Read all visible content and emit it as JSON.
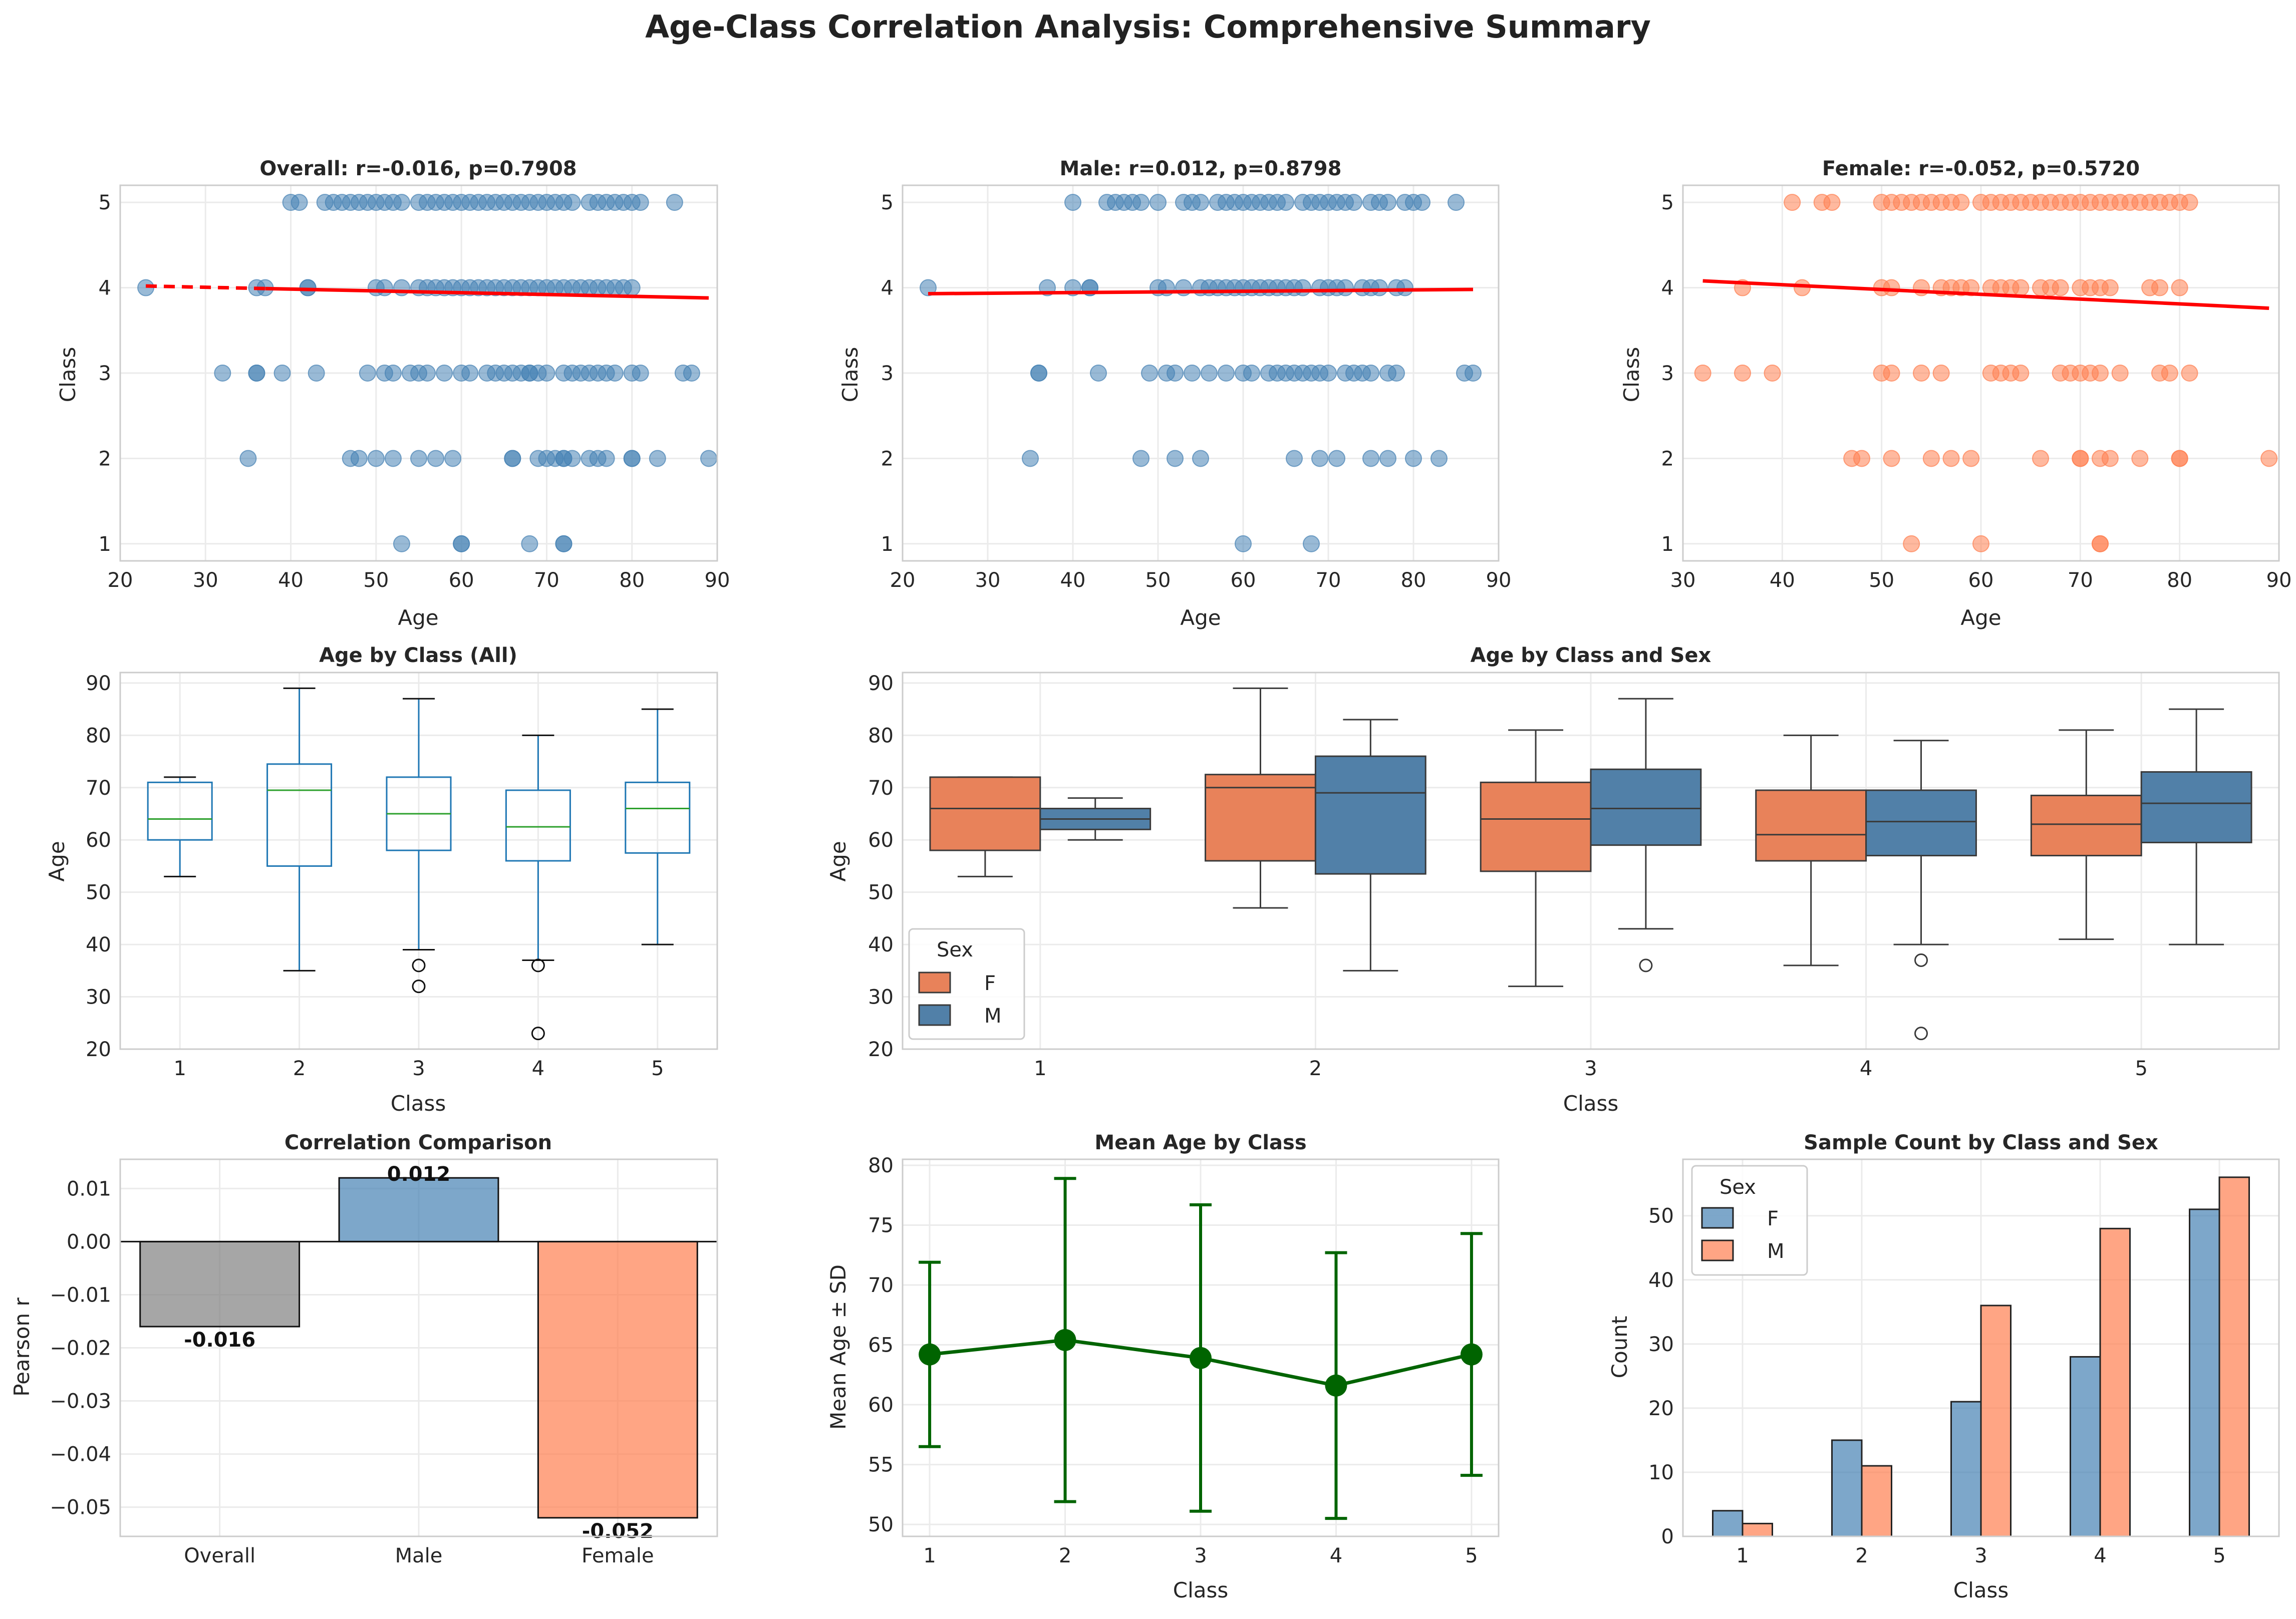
{
  "figure": {
    "title": "Age-Class Correlation Analysis: Comprehensive Summary"
  },
  "colors": {
    "steelblue": "#4682b4",
    "coral": "#ff7f50",
    "coral_box": "#e8825a",
    "blue_box": "#5180a8",
    "red": "#ff0000",
    "green": "#006400",
    "gray": "#808080",
    "mpl_blue": "#1f77b4",
    "mpl_green": "#2ca02c"
  },
  "chart_data": [
    {
      "id": "overall",
      "type": "scatter",
      "title": "Overall: r=-0.016, p=0.7908",
      "xlabel": "Age",
      "ylabel": "Class",
      "xlim": [
        20,
        90
      ],
      "ylim": [
        0.8,
        5.2
      ],
      "xticks": [
        20,
        30,
        40,
        50,
        60,
        70,
        80,
        90
      ],
      "yticks": [
        1,
        2,
        3,
        4,
        5
      ],
      "color": "#4682b4",
      "points": {
        "1": [
          53,
          60,
          60,
          68,
          72,
          72
        ],
        "2": [
          35,
          47,
          48,
          50,
          52,
          55,
          57,
          59,
          66,
          66,
          69,
          70,
          71,
          72,
          72,
          73,
          75,
          76,
          77,
          80,
          80,
          83,
          89
        ],
        "3": [
          32,
          36,
          36,
          39,
          43,
          49,
          51,
          52,
          54,
          55,
          56,
          58,
          60,
          61,
          63,
          64,
          65,
          66,
          67,
          68,
          68,
          69,
          70,
          72,
          73,
          74,
          75,
          76,
          77,
          78,
          80,
          81,
          86,
          87
        ],
        "4": [
          23,
          36,
          37,
          42,
          42,
          50,
          51,
          53,
          55,
          56,
          57,
          58,
          59,
          60,
          61,
          62,
          63,
          64,
          65,
          66,
          67,
          68,
          69,
          70,
          71,
          72,
          73,
          74,
          75,
          76,
          77,
          78,
          79,
          80
        ],
        "5": [
          40,
          41,
          44,
          45,
          46,
          47,
          48,
          49,
          50,
          51,
          52,
          53,
          55,
          56,
          57,
          58,
          59,
          60,
          61,
          62,
          63,
          64,
          65,
          66,
          67,
          68,
          69,
          70,
          71,
          72,
          73,
          75,
          76,
          77,
          78,
          79,
          80,
          81,
          85
        ]
      },
      "fit": {
        "x": [
          23,
          89
        ],
        "y": [
          4.02,
          3.88
        ],
        "dashed_until": 37
      }
    },
    {
      "id": "male",
      "type": "scatter",
      "title": "Male: r=0.012, p=0.8798",
      "xlabel": "Age",
      "ylabel": "Class",
      "xlim": [
        20,
        90
      ],
      "ylim": [
        0.8,
        5.2
      ],
      "xticks": [
        20,
        30,
        40,
        50,
        60,
        70,
        80,
        90
      ],
      "yticks": [
        1,
        2,
        3,
        4,
        5
      ],
      "color": "#4682b4",
      "points": {
        "1": [
          60,
          68
        ],
        "2": [
          35,
          48,
          52,
          55,
          66,
          69,
          71,
          75,
          77,
          80,
          83
        ],
        "3": [
          36,
          36,
          43,
          49,
          51,
          52,
          54,
          56,
          58,
          60,
          61,
          63,
          64,
          65,
          66,
          67,
          68,
          69,
          70,
          72,
          73,
          74,
          75,
          77,
          78,
          86,
          87
        ],
        "4": [
          23,
          37,
          40,
          42,
          42,
          50,
          51,
          53,
          55,
          56,
          57,
          58,
          59,
          60,
          61,
          62,
          63,
          64,
          65,
          66,
          67,
          69,
          70,
          71,
          72,
          74,
          75,
          76,
          78,
          79
        ],
        "5": [
          40,
          44,
          45,
          46,
          47,
          48,
          50,
          53,
          54,
          55,
          57,
          58,
          59,
          60,
          61,
          62,
          63,
          64,
          65,
          67,
          68,
          69,
          70,
          71,
          72,
          73,
          75,
          76,
          77,
          79,
          80,
          81,
          85
        ]
      },
      "fit": {
        "x": [
          23,
          87
        ],
        "y": [
          3.93,
          3.98
        ]
      }
    },
    {
      "id": "female",
      "type": "scatter",
      "title": "Female: r=-0.052, p=0.5720",
      "xlabel": "Age",
      "ylabel": "Class",
      "xlim": [
        30,
        90
      ],
      "ylim": [
        0.8,
        5.2
      ],
      "xticks": [
        30,
        40,
        50,
        60,
        70,
        80,
        90
      ],
      "yticks": [
        1,
        2,
        3,
        4,
        5
      ],
      "color": "#ff7f50",
      "points": {
        "1": [
          53,
          60,
          72,
          72
        ],
        "2": [
          47,
          48,
          51,
          55,
          57,
          59,
          66,
          70,
          70,
          72,
          73,
          76,
          80,
          80,
          89
        ],
        "3": [
          32,
          36,
          39,
          50,
          51,
          54,
          56,
          61,
          62,
          63,
          64,
          68,
          69,
          70,
          71,
          72,
          74,
          78,
          79,
          81
        ],
        "4": [
          36,
          42,
          50,
          51,
          54,
          56,
          57,
          58,
          59,
          61,
          62,
          63,
          64,
          66,
          67,
          68,
          70,
          71,
          72,
          73,
          77,
          78,
          80
        ],
        "5": [
          41,
          44,
          45,
          50,
          51,
          52,
          53,
          54,
          55,
          56,
          57,
          58,
          60,
          61,
          62,
          63,
          64,
          65,
          66,
          67,
          68,
          69,
          70,
          71,
          72,
          73,
          74,
          75,
          76,
          77,
          78,
          79,
          80,
          81
        ]
      },
      "fit": {
        "x": [
          32,
          89
        ],
        "y": [
          4.08,
          3.76
        ]
      }
    },
    {
      "id": "box_all",
      "type": "box",
      "title": "Age by Class (All)",
      "xlabel": "Class",
      "ylabel": "Age",
      "ylim": [
        20,
        92
      ],
      "yticks": [
        20,
        30,
        40,
        50,
        60,
        70,
        80,
        90
      ],
      "categories": [
        "1",
        "2",
        "3",
        "4",
        "5"
      ],
      "boxes": [
        {
          "q1": 60,
          "median": 64,
          "q3": 71,
          "lo": 53,
          "hi": 72,
          "outliers": []
        },
        {
          "q1": 55,
          "median": 69.5,
          "q3": 74.5,
          "lo": 35,
          "hi": 89,
          "outliers": []
        },
        {
          "q1": 58,
          "median": 65,
          "q3": 72,
          "lo": 39,
          "hi": 87,
          "outliers": [
            36,
            32
          ]
        },
        {
          "q1": 56,
          "median": 62.5,
          "q3": 69.5,
          "lo": 37,
          "hi": 80,
          "outliers": [
            36,
            23
          ]
        },
        {
          "q1": 57.5,
          "median": 66,
          "q3": 71,
          "lo": 40,
          "hi": 85,
          "outliers": []
        }
      ]
    },
    {
      "id": "box_sex",
      "type": "box",
      "title": "Age by Class and Sex",
      "xlabel": "Class",
      "ylabel": "Age",
      "ylim": [
        20,
        92
      ],
      "yticks": [
        20,
        30,
        40,
        50,
        60,
        70,
        80,
        90
      ],
      "categories": [
        "1",
        "2",
        "3",
        "4",
        "5"
      ],
      "legend": {
        "title": "Sex",
        "entries": [
          "F",
          "M"
        ],
        "placement": "lower-left"
      },
      "series": [
        {
          "name": "F",
          "boxes": [
            {
              "q1": 58,
              "median": 66,
              "q3": 72,
              "lo": 53,
              "hi": 72,
              "outliers": []
            },
            {
              "q1": 56,
              "median": 70,
              "q3": 72.5,
              "lo": 47,
              "hi": 89,
              "outliers": []
            },
            {
              "q1": 54,
              "median": 64,
              "q3": 71,
              "lo": 32,
              "hi": 81,
              "outliers": []
            },
            {
              "q1": 56,
              "median": 61,
              "q3": 69.5,
              "lo": 36,
              "hi": 80,
              "outliers": []
            },
            {
              "q1": 57,
              "median": 63,
              "q3": 68.5,
              "lo": 41,
              "hi": 81,
              "outliers": []
            }
          ]
        },
        {
          "name": "M",
          "boxes": [
            {
              "q1": 62,
              "median": 64,
              "q3": 66,
              "lo": 60,
              "hi": 68,
              "outliers": []
            },
            {
              "q1": 53.5,
              "median": 69,
              "q3": 76,
              "lo": 35,
              "hi": 83,
              "outliers": []
            },
            {
              "q1": 59,
              "median": 66,
              "q3": 73.5,
              "lo": 43,
              "hi": 87,
              "outliers": [
                36
              ]
            },
            {
              "q1": 57,
              "median": 63.5,
              "q3": 69.5,
              "lo": 40,
              "hi": 79,
              "outliers": [
                37,
                23
              ]
            },
            {
              "q1": 59.5,
              "median": 67,
              "q3": 73,
              "lo": 40,
              "hi": 85,
              "outliers": []
            }
          ]
        }
      ]
    },
    {
      "id": "corr",
      "type": "bar",
      "title": "Correlation Comparison",
      "ylabel": "Pearson r",
      "ylim": [
        -0.0555,
        0.0155
      ],
      "yticks": [
        0.01,
        0.0,
        -0.01,
        -0.02,
        -0.03,
        -0.04,
        -0.05
      ],
      "yticklabels": [
        "0.01",
        "0.00",
        "−0.01",
        "−0.02",
        "−0.03",
        "−0.04",
        "−0.05"
      ],
      "categories": [
        "Overall",
        "Male",
        "Female"
      ],
      "values": [
        -0.016,
        0.012,
        -0.052
      ],
      "labels": [
        "-0.016",
        "0.012",
        "-0.052"
      ],
      "colors": [
        "#808080",
        "#4682b4",
        "#ff7f50"
      ]
    },
    {
      "id": "mean",
      "type": "line",
      "title": "Mean Age by Class",
      "xlabel": "Class",
      "ylabel": "Mean Age ± SD",
      "ylim": [
        49,
        80.5
      ],
      "yticks": [
        50,
        55,
        60,
        65,
        70,
        75,
        80
      ],
      "categories": [
        "1",
        "2",
        "3",
        "4",
        "5"
      ],
      "values": [
        64.2,
        65.4,
        63.9,
        61.6,
        64.2
      ],
      "sd": [
        7.7,
        13.5,
        12.8,
        11.1,
        10.1
      ]
    },
    {
      "id": "count",
      "type": "bar",
      "title": "Sample Count by Class and Sex",
      "xlabel": "Class",
      "ylabel": "Count",
      "ylim": [
        0,
        58.8
      ],
      "yticks": [
        0,
        10,
        20,
        30,
        40,
        50
      ],
      "categories": [
        "1",
        "2",
        "3",
        "4",
        "5"
      ],
      "legend": {
        "title": "Sex",
        "entries": [
          "F",
          "M"
        ],
        "placement": "top-left"
      },
      "series": [
        {
          "name": "F",
          "values": [
            4,
            15,
            21,
            28,
            51
          ],
          "color": "#4682b4"
        },
        {
          "name": "M",
          "values": [
            2,
            11,
            36,
            48,
            56
          ],
          "color": "#ff7f50"
        }
      ]
    }
  ]
}
